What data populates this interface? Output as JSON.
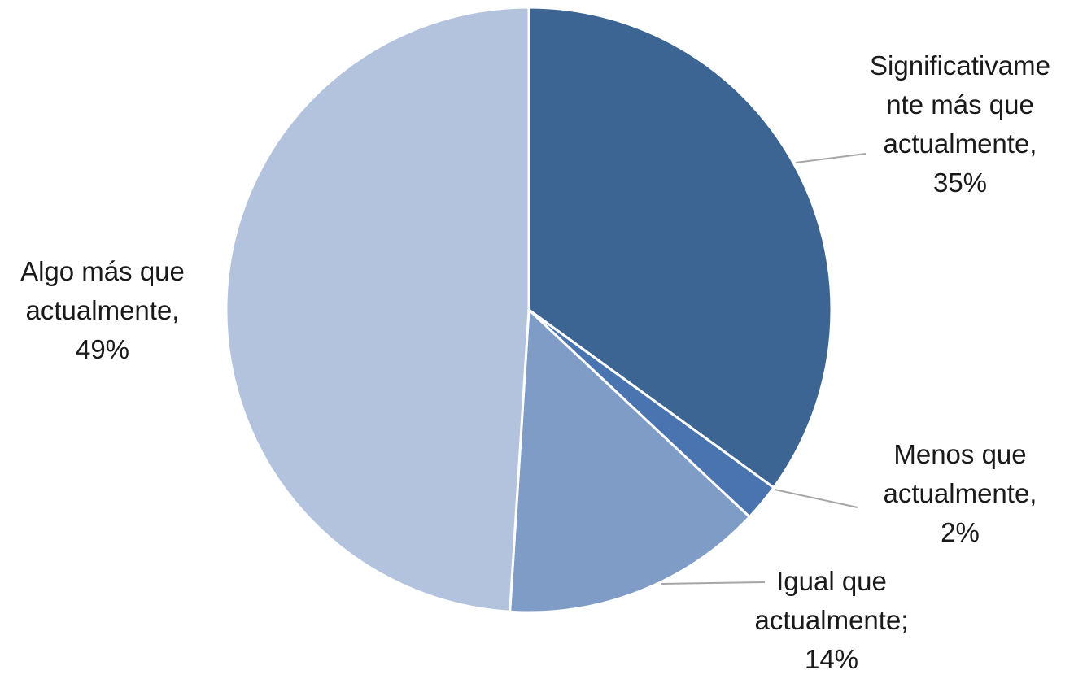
{
  "chart_data": {
    "type": "pie",
    "title": "",
    "slices": [
      {
        "label_lines": [
          "Significativame",
          "nte más que",
          "actualmente,"
        ],
        "value_text": "35%",
        "value": 35,
        "color": "#3d6594"
      },
      {
        "label_lines": [
          "Menos que",
          "actualmente,"
        ],
        "value_text": "2%",
        "value": 2,
        "color": "#4a74af"
      },
      {
        "label_lines": [
          "Igual que",
          "actualmente;"
        ],
        "value_text": "14%",
        "value": 14,
        "color": "#7f9cc7"
      },
      {
        "label_lines": [
          "Algo más que",
          "actualmente,"
        ],
        "value_text": "49%",
        "value": 49,
        "color": "#b4c3dd"
      }
    ],
    "start_angle_deg": 0,
    "direction": "clockwise",
    "legend": "none",
    "data_labels": "outside-with-leader-lines"
  }
}
